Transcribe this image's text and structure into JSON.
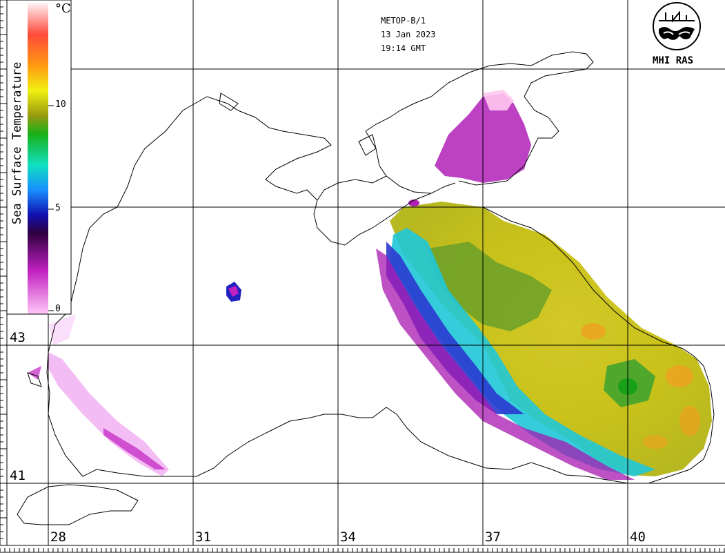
{
  "header": {
    "satellite": "METOP-B/1",
    "date": "13 Jan 2023",
    "time": "19:14 GMT"
  },
  "logo": {
    "text": "MHI RAS",
    "icon": "mhi-ras-emblem-icon"
  },
  "colorbar": {
    "title": "Sea Surface Temperature",
    "unit": "°C",
    "ticks": [
      "10",
      "5",
      "0"
    ],
    "colors_top_to_bottom": [
      "#fff0f4",
      "#ff4a3a",
      "#ff9a10",
      "#f0f010",
      "#9a9a10",
      "#18b018",
      "#10e0c0",
      "#1890ff",
      "#1010b0",
      "#300040",
      "#c020c0",
      "#ffc8f8"
    ]
  },
  "axes": {
    "longitude_labels": [
      "28",
      "31",
      "34",
      "37",
      "40"
    ],
    "latitude_labels": [
      "43",
      "41"
    ]
  },
  "colors": {
    "grid": "#000000",
    "coast": "#000000",
    "magenta": "#b000b8",
    "olive": "#c4c410",
    "green": "#5aa020",
    "cyan": "#20d8e0",
    "blue": "#2020c0"
  }
}
